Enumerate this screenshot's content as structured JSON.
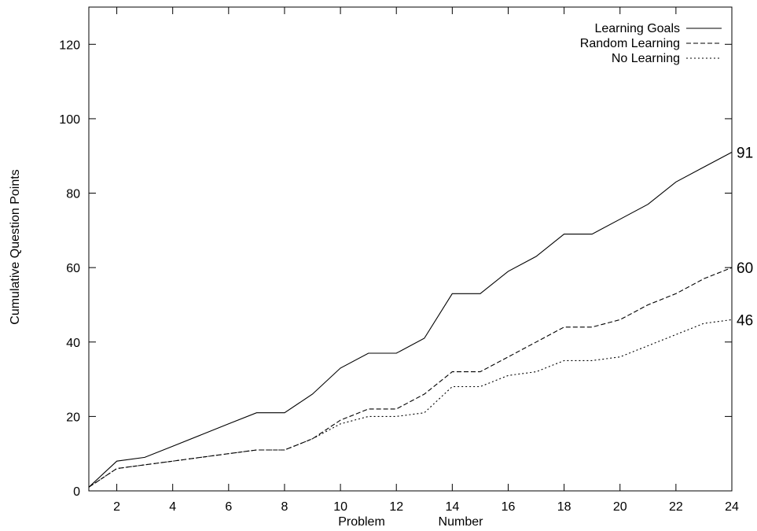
{
  "chart_data": {
    "type": "line",
    "title": "",
    "xlabel": "Problem Number",
    "xlabel_words": [
      "Problem",
      "Number"
    ],
    "ylabel": "Cumulative Question Points",
    "xlim": [
      1,
      24
    ],
    "ylim": [
      0,
      130
    ],
    "xticks": [
      2,
      4,
      6,
      8,
      10,
      12,
      14,
      16,
      18,
      20,
      22,
      24
    ],
    "yticks": [
      0,
      20,
      40,
      60,
      80,
      100,
      120
    ],
    "grid": false,
    "legend_position": "top-right",
    "x": [
      1,
      2,
      3,
      4,
      5,
      6,
      7,
      8,
      9,
      10,
      11,
      12,
      13,
      14,
      15,
      16,
      17,
      18,
      19,
      20,
      21,
      22,
      23,
      24
    ],
    "series": [
      {
        "name": "Learning Goals",
        "style": "solid",
        "values": [
          1,
          8,
          9,
          12,
          15,
          18,
          21,
          21,
          26,
          33,
          37,
          37,
          41,
          53,
          53,
          59,
          63,
          69,
          69,
          73,
          77,
          83,
          87,
          91
        ],
        "end_label": "91"
      },
      {
        "name": "Random Learning",
        "style": "dashed",
        "values": [
          1,
          6,
          7,
          8,
          9,
          10,
          11,
          11,
          14,
          19,
          22,
          22,
          26,
          32,
          32,
          36,
          40,
          44,
          44,
          46,
          50,
          53,
          57,
          60
        ],
        "end_label": "60"
      },
      {
        "name": "No Learning",
        "style": "dotted",
        "values": [
          1,
          6,
          7,
          8,
          9,
          10,
          11,
          11,
          14,
          18,
          20,
          20,
          21,
          28,
          28,
          31,
          32,
          35,
          35,
          36,
          39,
          42,
          45,
          46
        ],
        "end_label": "46"
      }
    ],
    "line_color": "#000000"
  }
}
